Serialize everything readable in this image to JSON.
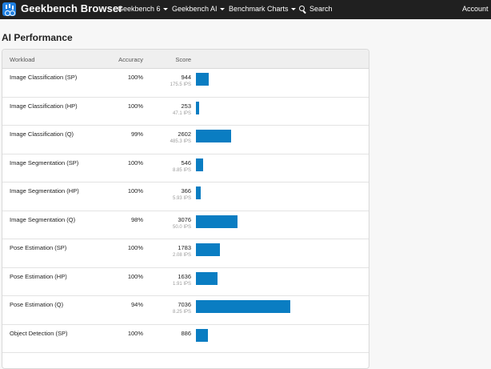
{
  "navbar": {
    "brand": "Geekbench Browser",
    "links": [
      "Geekbench 6",
      "Geekbench AI",
      "Benchmark Charts"
    ],
    "search_label": "Search",
    "account_label": "Account"
  },
  "page": {
    "title": "AI Performance"
  },
  "table": {
    "columns": [
      "Workload",
      "Accuracy",
      "Score"
    ],
    "max_score": 7036,
    "rows": [
      {
        "workload": "Image Classification (SP)",
        "accuracy": "100%",
        "score": 944,
        "score_label": "944",
        "ips": "175.5 IPS"
      },
      {
        "workload": "Image Classification (HP)",
        "accuracy": "100%",
        "score": 253,
        "score_label": "253",
        "ips": "47.1 IPS"
      },
      {
        "workload": "Image Classification (Q)",
        "accuracy": "99%",
        "score": 2602,
        "score_label": "2602",
        "ips": "485.3 IPS"
      },
      {
        "workload": "Image Segmentation (SP)",
        "accuracy": "100%",
        "score": 546,
        "score_label": "546",
        "ips": "8.85 IPS"
      },
      {
        "workload": "Image Segmentation (HP)",
        "accuracy": "100%",
        "score": 366,
        "score_label": "366",
        "ips": "5.93 IPS"
      },
      {
        "workload": "Image Segmentation (Q)",
        "accuracy": "98%",
        "score": 3076,
        "score_label": "3076",
        "ips": "50.0 IPS"
      },
      {
        "workload": "Pose Estimation (SP)",
        "accuracy": "100%",
        "score": 1783,
        "score_label": "1783",
        "ips": "2.08 IPS"
      },
      {
        "workload": "Pose Estimation (HP)",
        "accuracy": "100%",
        "score": 1636,
        "score_label": "1636",
        "ips": "1.91 IPS"
      },
      {
        "workload": "Pose Estimation (Q)",
        "accuracy": "94%",
        "score": 7036,
        "score_label": "7036",
        "ips": "8.25 IPS"
      },
      {
        "workload": "Object Detection (SP)",
        "accuracy": "100%",
        "score": 886,
        "score_label": "886",
        "ips": ""
      }
    ]
  },
  "colors": {
    "navbar": "#202020",
    "bar": "#0a7dc2",
    "logo": "#1f7fe0"
  }
}
